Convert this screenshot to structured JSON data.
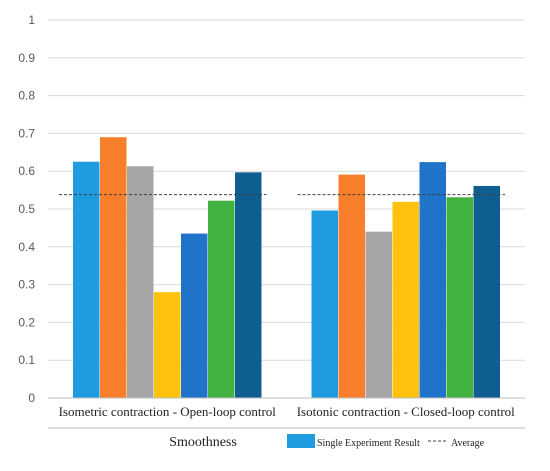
{
  "chart_data": {
    "type": "bar",
    "title": "",
    "xlabel": "Smoothness",
    "ylabel": "",
    "ylim": [
      0,
      1
    ],
    "yticks": [
      "0",
      "0.1",
      "0.2",
      "0.3",
      "0.4",
      "0.5",
      "0.6",
      "0.7",
      "0.8",
      "0.9",
      "1"
    ],
    "grid": true,
    "legend_position": "bottom-right",
    "categories": [
      "Isometric contraction - Open-loop control",
      "Isotonic contraction - Closed-loop control"
    ],
    "groups": [
      {
        "category": "Isometric contraction - Open-loop control",
        "values": [
          0.625,
          0.69,
          0.613,
          0.28,
          0.435,
          0.522,
          0.597
        ],
        "average": 0.538
      },
      {
        "category": "Isotonic contraction - Closed-loop control",
        "values": [
          0.496,
          0.591,
          0.44,
          0.519,
          0.624,
          0.531,
          0.561
        ],
        "average": 0.538
      }
    ],
    "bar_colors": [
      "#1f9ce0",
      "#f77f2c",
      "#a6a6a6",
      "#ffc20e",
      "#1f73c8",
      "#41b23f",
      "#0e5e91"
    ],
    "legend": {
      "bar_label": "Single Experiment Result",
      "line_label": "Average"
    }
  }
}
